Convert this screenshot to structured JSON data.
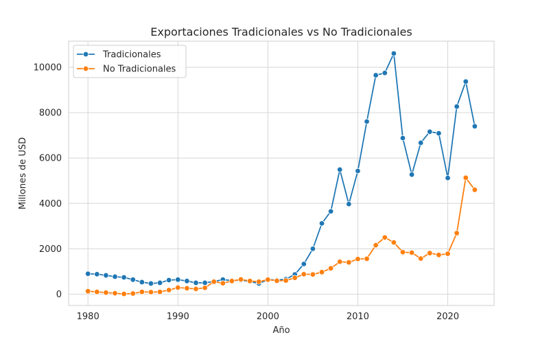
{
  "chart_data": {
    "type": "line",
    "title": "Exportaciones Tradicionales vs No Tradicionales",
    "xlabel": "Año",
    "ylabel": "Millones de USD",
    "xlim": [
      1977.85,
      2025.15
    ],
    "ylim": [
      -500,
      11150
    ],
    "xticks": [
      1980,
      1990,
      2000,
      2010,
      2020
    ],
    "yticks": [
      0,
      2000,
      4000,
      6000,
      8000,
      10000
    ],
    "grid": true,
    "legend": "top-left",
    "x": [
      1980,
      1981,
      1982,
      1983,
      1984,
      1985,
      1986,
      1987,
      1988,
      1989,
      1990,
      1991,
      1992,
      1993,
      1994,
      1995,
      1996,
      1997,
      1998,
      1999,
      2000,
      2001,
      2002,
      2003,
      2004,
      2005,
      2006,
      2007,
      2008,
      2009,
      2010,
      2011,
      2012,
      2013,
      2014,
      2015,
      2016,
      2017,
      2018,
      2019,
      2020,
      2021,
      2022,
      2023
    ],
    "series": [
      {
        "name": "Tradicionales",
        "color": "#1f77b4",
        "values": [
          900,
          880,
          830,
          770,
          740,
          640,
          530,
          470,
          500,
          620,
          640,
          580,
          500,
          500,
          560,
          640,
          600,
          620,
          560,
          470,
          640,
          620,
          660,
          870,
          1330,
          2000,
          3120,
          3650,
          5490,
          3970,
          5430,
          7610,
          9650,
          9750,
          10610,
          6880,
          5270,
          6670,
          7160,
          7090,
          5120,
          8270,
          9370,
          7400
        ]
      },
      {
        "name": "No Tradicionales",
        "color": "#ff7f0e",
        "values": [
          130,
          100,
          70,
          40,
          10,
          30,
          100,
          90,
          100,
          180,
          290,
          260,
          230,
          280,
          550,
          480,
          580,
          650,
          580,
          550,
          640,
          590,
          600,
          720,
          880,
          870,
          970,
          1140,
          1430,
          1400,
          1550,
          1560,
          2160,
          2500,
          2280,
          1850,
          1830,
          1570,
          1810,
          1730,
          1780,
          2690,
          5130,
          4600
        ]
      }
    ]
  }
}
